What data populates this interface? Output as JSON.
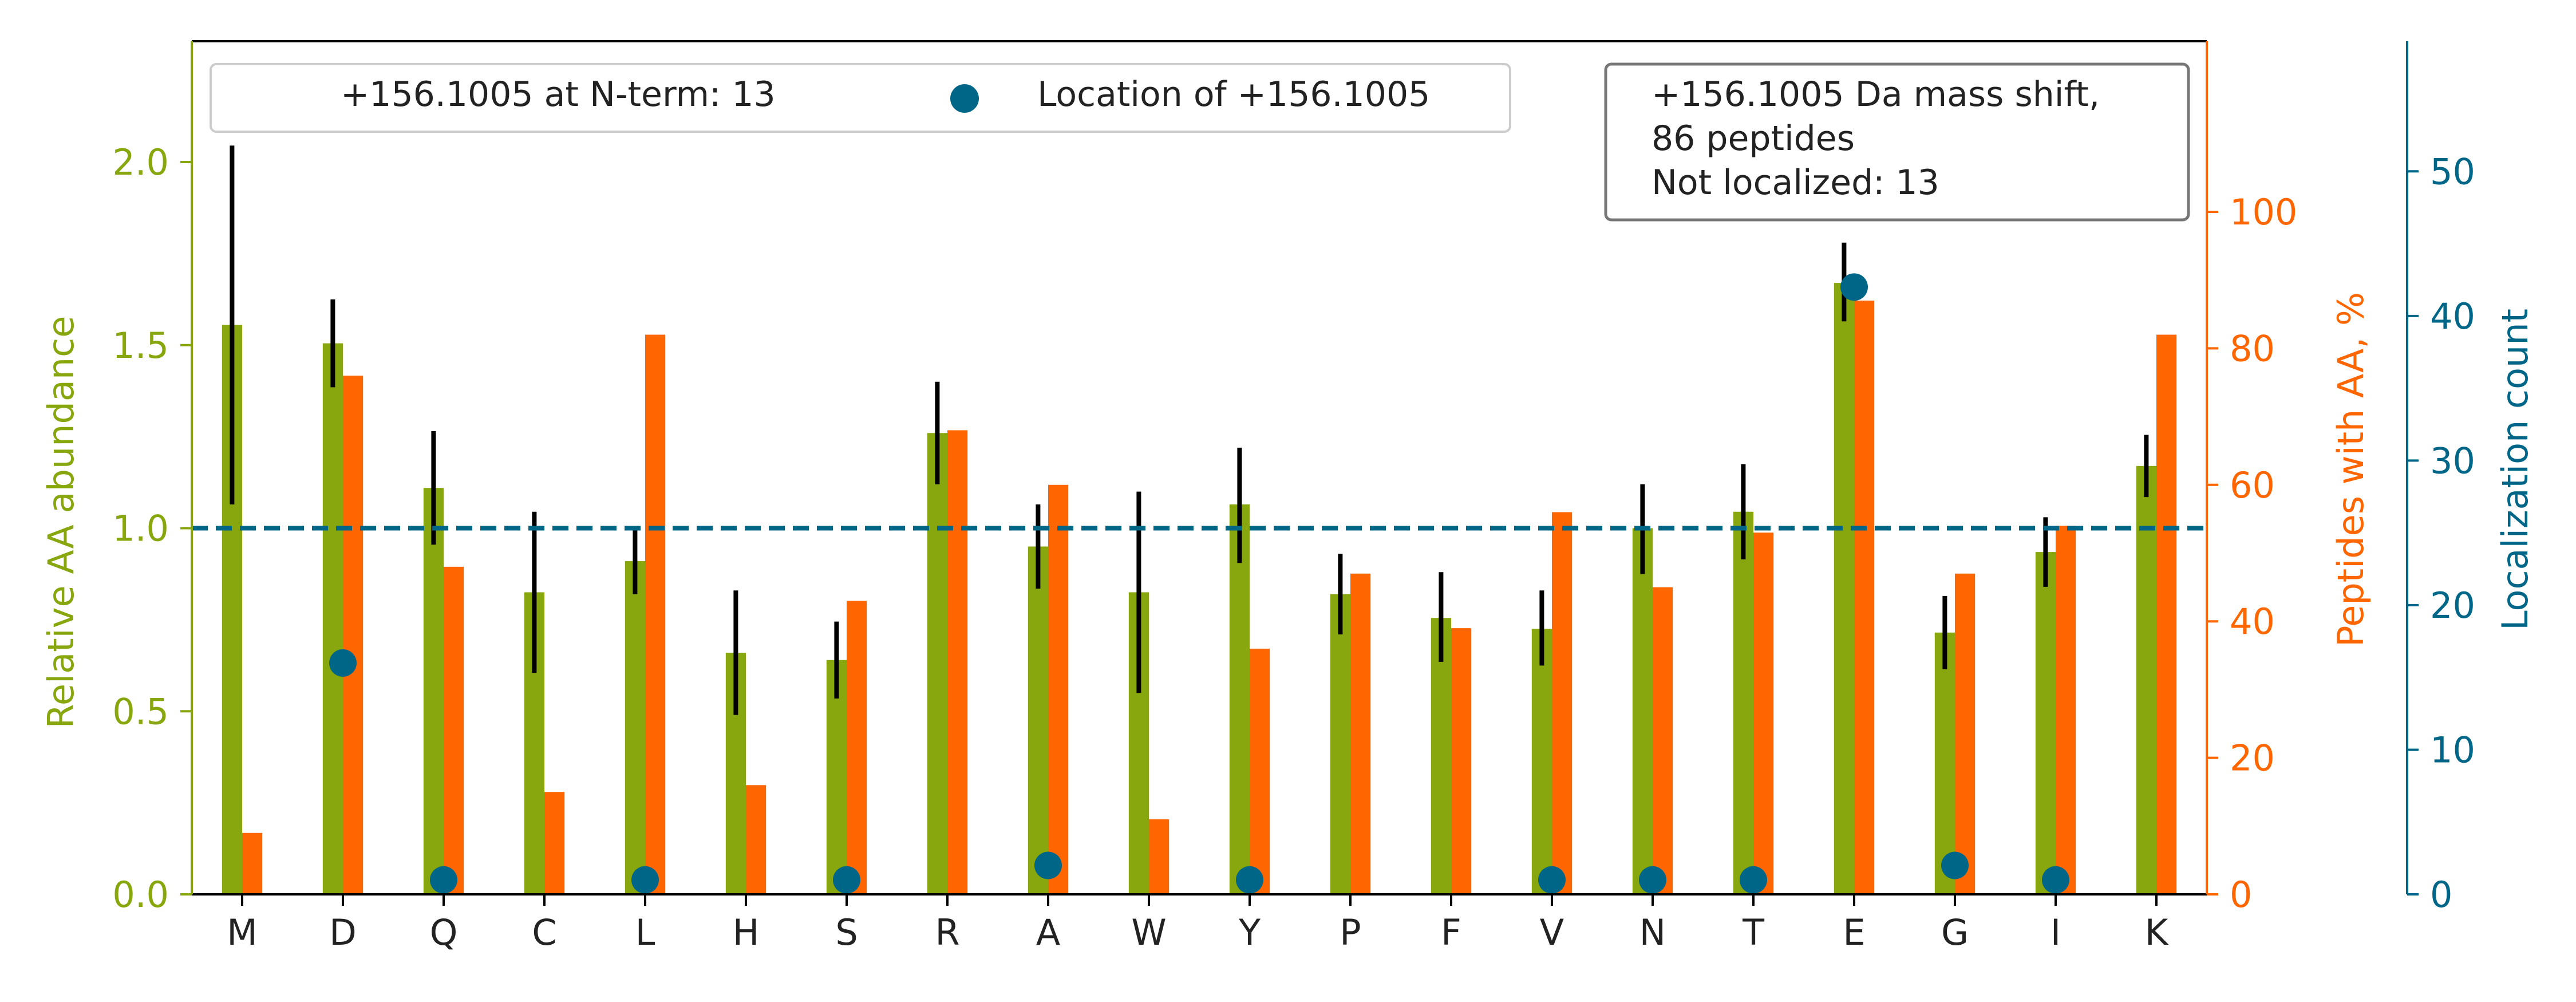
{
  "chart_data": {
    "type": "bar",
    "categories": [
      "M",
      "D",
      "Q",
      "C",
      "L",
      "H",
      "S",
      "R",
      "A",
      "W",
      "Y",
      "P",
      "F",
      "V",
      "N",
      "T",
      "E",
      "G",
      "I",
      "K"
    ],
    "series": [
      {
        "axis": "left",
        "kind": "bar",
        "values": [
          1.555,
          1.505,
          1.11,
          0.825,
          0.91,
          0.66,
          0.64,
          1.26,
          0.95,
          0.825,
          1.065,
          0.82,
          0.755,
          0.725,
          1.0,
          1.045,
          1.67,
          0.715,
          0.935,
          1.17
        ],
        "err_low": [
          1.065,
          1.385,
          0.955,
          0.605,
          0.82,
          0.49,
          0.535,
          1.12,
          0.835,
          0.55,
          0.905,
          0.71,
          0.635,
          0.625,
          0.875,
          0.915,
          1.565,
          0.615,
          0.84,
          1.085
        ],
        "err_high": [
          2.045,
          1.625,
          1.265,
          1.045,
          0.995,
          0.83,
          0.745,
          1.4,
          1.065,
          1.1,
          1.22,
          0.93,
          0.88,
          0.83,
          1.12,
          1.175,
          1.78,
          0.815,
          1.03,
          1.255
        ],
        "color": "#88A70E"
      },
      {
        "axis": "right",
        "kind": "bar",
        "values": [
          9,
          76,
          48,
          15,
          82,
          16,
          43,
          68,
          60,
          11,
          36,
          47,
          39,
          56,
          45,
          53,
          87,
          47,
          54,
          82
        ],
        "color": "#FF6600"
      },
      {
        "axis": "right2",
        "kind": "scatter",
        "name": "Location of +156.1005",
        "points": [
          {
            "category": "D",
            "value": 16
          },
          {
            "category": "Q",
            "value": 1
          },
          {
            "category": "L",
            "value": 1
          },
          {
            "category": "S",
            "value": 1
          },
          {
            "category": "A",
            "value": 2
          },
          {
            "category": "Y",
            "value": 1
          },
          {
            "category": "V",
            "value": 1
          },
          {
            "category": "N",
            "value": 1
          },
          {
            "category": "T",
            "value": 1
          },
          {
            "category": "E",
            "value": 42
          },
          {
            "category": "G",
            "value": 2
          },
          {
            "category": "I",
            "value": 1
          }
        ],
        "color": "#006688"
      }
    ],
    "reference_line": {
      "axis": "left",
      "value": 1.0,
      "style": "dashed",
      "color": "#006688"
    },
    "y_left": {
      "label": "Relative AA abundance",
      "lim": [
        0,
        2.33
      ],
      "ticks": [
        0.0,
        0.5,
        1.0,
        1.5,
        2.0
      ],
      "tick_labels": [
        "0.0",
        "0.5",
        "1.0",
        "1.5",
        "2.0"
      ],
      "color": "#88A70E"
    },
    "y_right": {
      "label": "Peptides with AA, %",
      "lim": [
        0,
        125
      ],
      "ticks": [
        0,
        20,
        40,
        60,
        80,
        100
      ],
      "tick_labels": [
        "0",
        "20",
        "40",
        "60",
        "80",
        "100"
      ],
      "color": "#FF6600"
    },
    "y_right2": {
      "label": "Localization count",
      "lim": [
        0,
        59
      ],
      "ticks": [
        0,
        10,
        20,
        30,
        40,
        50
      ],
      "tick_labels": [
        "0",
        "10",
        "20",
        "30",
        "40",
        "50"
      ],
      "color": "#006688"
    },
    "legend": {
      "placement": "top-left",
      "entries": [
        {
          "label": "+156.1005 at N-term: 13",
          "marker": "none"
        },
        {
          "label": "Location of +156.1005",
          "marker": "circle"
        }
      ]
    },
    "annotation": {
      "placement": "top-right",
      "lines": [
        "+156.1005 Da mass shift,",
        "86 peptides",
        "Not localized: 13"
      ]
    }
  }
}
